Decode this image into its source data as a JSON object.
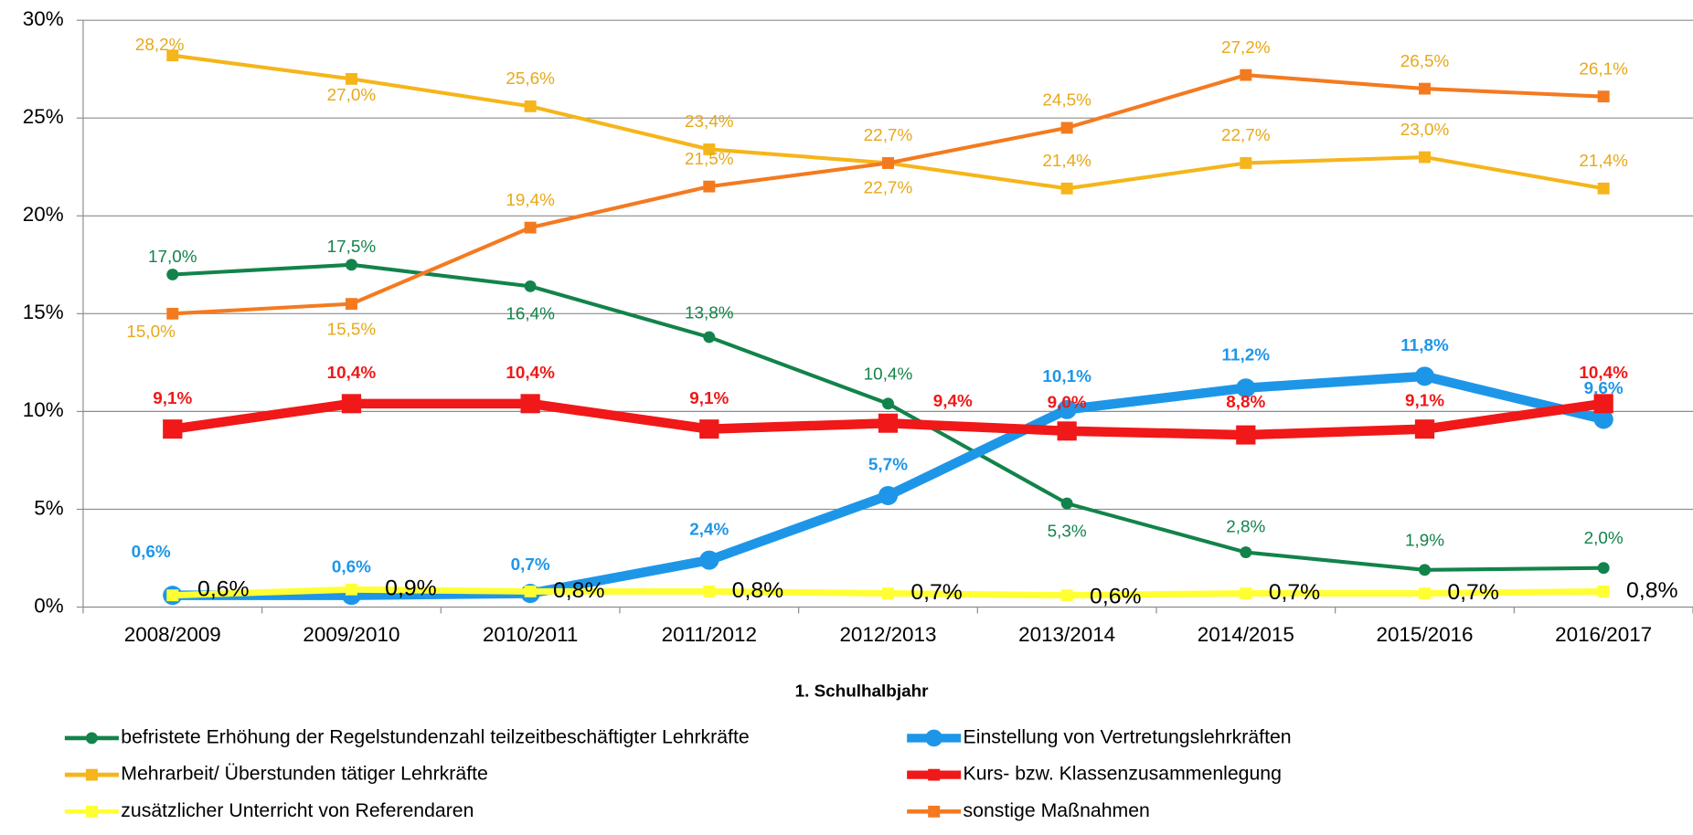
{
  "chart_data": {
    "type": "line",
    "x_label": "1. Schulhalbjahr",
    "categories": [
      "2008/2009",
      "2009/2010",
      "2010/2011",
      "2011/2012",
      "2012/2013",
      "2013/2014",
      "2014/2015",
      "2015/2016",
      "2016/2017"
    ],
    "ylim": [
      0,
      30
    ],
    "yticks": [
      {
        "value": 0,
        "label": "0%"
      },
      {
        "value": 5,
        "label": "5%"
      },
      {
        "value": 10,
        "label": "10%"
      },
      {
        "value": 15,
        "label": "15%"
      },
      {
        "value": 20,
        "label": "20%"
      },
      {
        "value": 25,
        "label": "25%"
      },
      {
        "value": 30,
        "label": "30%"
      }
    ],
    "grid": true,
    "series": [
      {
        "name": "befristete Erhöhung der Regelstundenzahl teilzeitbeschäftigter Lehrkräfte",
        "color": "#12834a",
        "marker": "circle",
        "values": [
          17.0,
          17.5,
          16.4,
          13.8,
          10.4,
          5.3,
          2.8,
          1.9,
          2.0
        ],
        "value_labels": [
          "17,0%",
          "17,5%",
          "16,4%",
          "13,8%",
          "10,4%",
          "5,3%",
          "2,8%",
          "1,9%",
          "2,0%"
        ]
      },
      {
        "name": "Einstellung von Vertretungslehrkräften",
        "color": "#1e96e8",
        "marker": "circle",
        "thick": true,
        "values": [
          0.6,
          0.6,
          0.7,
          2.4,
          5.7,
          10.1,
          11.2,
          11.8,
          9.6
        ],
        "value_labels": [
          "0,6%",
          "0,6%",
          "0,7%",
          "2,4%",
          "5,7%",
          "10,1%",
          "11,2%",
          "11,8%",
          "9,6%"
        ]
      },
      {
        "name": "Mehrarbeit/ Überstunden tätiger Lehrkräfte",
        "color": "#f5b51b",
        "marker": "square",
        "values": [
          28.2,
          27.0,
          25.6,
          23.4,
          22.7,
          21.4,
          22.7,
          23.0,
          21.4
        ],
        "value_labels": [
          "28,2%",
          "27,0%",
          "25,6%",
          "23,4%",
          "22,7%",
          "21,4%",
          "22,7%",
          "23,0%",
          "21,4%"
        ]
      },
      {
        "name": "Kurs- bzw. Klassenzusammenlegung",
        "color": "#f01818",
        "marker": "square",
        "thick": true,
        "values": [
          9.1,
          10.4,
          10.4,
          9.1,
          9.4,
          9.0,
          8.8,
          9.1,
          10.4
        ],
        "value_labels": [
          "9,1%",
          "10,4%",
          "10,4%",
          "9,1%",
          "9,4%",
          "9,0%",
          "8,8%",
          "9,1%",
          "10,4%"
        ]
      },
      {
        "name": "zusätzlicher Unterricht von Referendaren",
        "color": "#ffff33",
        "marker": "square",
        "values": [
          0.6,
          0.9,
          0.8,
          0.8,
          0.7,
          0.6,
          0.7,
          0.7,
          0.8
        ],
        "value_labels": [
          "0,6%",
          "0,9%",
          "0,8%",
          "0,8%",
          "0,7%",
          "0,6%",
          "0,7%",
          "0,7%",
          "0,8%"
        ]
      },
      {
        "name": "sonstige Maßnahmen",
        "color": "#f47a20",
        "marker": "square",
        "values": [
          15.0,
          15.5,
          19.4,
          21.5,
          22.7,
          24.5,
          27.2,
          26.5,
          26.1
        ],
        "value_labels": [
          "15,0%",
          "15,5%",
          "19,4%",
          "21,5%",
          "22,7%",
          "24,5%",
          "27,2%",
          "26,5%",
          "26,1%"
        ]
      }
    ]
  }
}
